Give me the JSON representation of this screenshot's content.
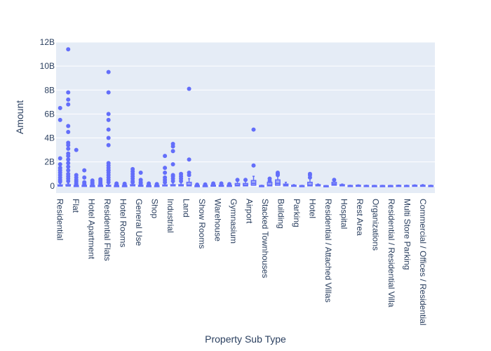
{
  "chart_data": {
    "type": "box",
    "xlabel": "Property Sub Type",
    "ylabel": "Amount",
    "ylim": [
      -600000000,
      12000000000
    ],
    "yticks": [
      0,
      2000000000,
      4000000000,
      6000000000,
      8000000000,
      10000000000,
      12000000000
    ],
    "ytick_labels": [
      "0",
      "2B",
      "4B",
      "6B",
      "8B",
      "10B",
      "12B"
    ],
    "grid": true,
    "legend": "none",
    "colors": {
      "marker": "#636efa",
      "plot_bg": "#e5ecf6",
      "grid": "#ffffff",
      "text": "#2a3f5f"
    },
    "categories": [
      "Residential",
      "Flat",
      "Hotel Apartment",
      "Residential Flats",
      "Hotel Rooms",
      "General Use",
      "Shop",
      "Industrial",
      "Land",
      "Show Rooms",
      "Warehouse",
      "Gymnasium",
      "Airport",
      "Stacked Townhouses",
      "Building",
      "Parking",
      "Hotel",
      "Residential / Attached Villas",
      "Hospital",
      "Rest Area",
      "Organizations",
      "Residential / Residential Villa",
      "Multi Store Parking",
      "Commercial / Offices / Residential"
    ],
    "series": [
      {
        "q1": 0,
        "median": 0,
        "q3": 80000000.0,
        "upper": 200000000.0,
        "outliers": [
          6500000000.0,
          5500000000.0,
          2300000000.0,
          1800000000.0,
          1500000000.0,
          1300000000.0,
          1100000000.0,
          900000000.0,
          700000000.0,
          500000000.0,
          350000000.0
        ]
      },
      {
        "q1": 0,
        "median": 0,
        "q3": 100000000.0,
        "upper": 200000000.0,
        "outliers": [
          11400000000.0,
          7800000000.0,
          7200000000.0,
          6800000000.0,
          5000000000.0,
          4500000000.0,
          3600000000.0,
          3400000000.0,
          3100000000.0,
          2700000000.0,
          2500000000.0,
          2200000000.0,
          1900000000.0,
          1600000000.0,
          1300000000.0,
          1000000000.0,
          800000000.0,
          600000000.0,
          400000000.0
        ]
      },
      {
        "q1": 0,
        "median": 0,
        "q3": 30000000.0,
        "upper": 60000000.0,
        "outliers": [
          3000000000.0,
          900000000.0,
          700000000.0,
          500000000.0,
          350000000.0,
          200000000.0,
          100000000.0
        ]
      },
      {
        "q1": 0,
        "median": 0,
        "q3": 40000000.0,
        "upper": 80000000.0,
        "outliers": [
          1300000000.0,
          700000000.0,
          300000000.0,
          200000000.0,
          100000000.0
        ]
      },
      {
        "q1": 0,
        "median": 0,
        "q3": 20000000.0,
        "upper": 40000000.0,
        "outliers": [
          450000000.0,
          300000000.0,
          200000000.0,
          100000000.0
        ]
      },
      {
        "q1": 0,
        "median": 10000000.0,
        "q3": 40000000.0,
        "upper": 80000000.0,
        "outliers": [
          550000000.0,
          400000000.0,
          250000000.0,
          150000000.0
        ]
      },
      {
        "q1": 0,
        "median": 10000000.0,
        "q3": 50000000.0,
        "upper": 100000000.0,
        "outliers": [
          9500000000.0,
          7800000000.0,
          6000000000.0,
          5500000000.0,
          4700000000.0,
          4000000000.0,
          3400000000.0,
          1900000000.0,
          1700000000.0,
          1500000000.0,
          1300000000.0,
          1100000000.0,
          900000000.0,
          700000000.0,
          500000000.0,
          300000000.0,
          1300000000.0
        ]
      },
      {
        "q1": 0,
        "median": 0,
        "q3": 20000000.0,
        "upper": 50000000.0,
        "outliers": [
          200000000.0,
          120000000.0,
          80000000.0
        ]
      },
      {
        "q1": 0,
        "median": 0,
        "q3": 20000000.0,
        "upper": 50000000.0,
        "outliers": [
          180000000.0,
          120000000.0,
          80000000.0
        ]
      },
      {
        "q1": 0,
        "median": 20000000.0,
        "q3": 100000000.0,
        "upper": 200000000.0,
        "outliers": [
          1400000000.0,
          1200000000.0,
          1000000000.0,
          800000000.0,
          600000000.0,
          400000000.0,
          300000000.0
        ]
      },
      {
        "q1": 0,
        "median": 10000000.0,
        "q3": 50000000.0,
        "upper": 100000000.0,
        "outliers": [
          1100000000.0,
          500000000.0,
          300000000.0,
          200000000.0
        ]
      },
      {
        "q1": 0,
        "median": 0,
        "q3": 20000000.0,
        "upper": 50000000.0,
        "outliers": [
          200000000.0,
          100000000.0
        ]
      },
      {
        "q1": 0,
        "median": 0,
        "q3": 20000000.0,
        "upper": 50000000.0,
        "outliers": [
          150000000.0,
          100000000.0
        ]
      },
      {
        "q1": 0,
        "median": 20000000.0,
        "q3": 80000000.0,
        "upper": 200000000.0,
        "outliers": [
          2500000000.0,
          1500000000.0,
          1100000000.0,
          700000000.0,
          500000000.0,
          300000000.0
        ]
      },
      {
        "q1": 0,
        "median": 20000000.0,
        "q3": 100000000.0,
        "upper": 250000000.0,
        "outliers": [
          3500000000.0,
          3300000000.0,
          2900000000.0,
          1800000000.0,
          900000000.0,
          800000000.0,
          600000000.0,
          400000000.0
        ]
      },
      {
        "q1": 0,
        "median": 20000000.0,
        "q3": 100000000.0,
        "upper": 250000000.0,
        "outliers": [
          1000000000.0,
          800000000.0,
          600000000.0,
          400000000.0
        ]
      },
      {
        "q1": 0,
        "median": 50000000.0,
        "q3": 300000000.0,
        "upper": 600000000.0,
        "outliers": [
          8100000000.0,
          2200000000.0,
          1100000000.0,
          900000000.0
        ]
      },
      {
        "q1": 0,
        "median": 0,
        "q3": 20000000.0,
        "upper": 50000000.0,
        "outliers": [
          100000000.0
        ]
      },
      {
        "q1": 0,
        "median": 0,
        "q3": 20000000.0,
        "upper": 50000000.0,
        "outliers": [
          120000000.0
        ]
      },
      {
        "q1": 0,
        "median": 20000000.0,
        "q3": 60000000.0,
        "upper": 100000000.0,
        "outliers": [
          200000000.0,
          150000000.0
        ]
      },
      {
        "q1": 0,
        "median": 20000000.0,
        "q3": 50000000.0,
        "upper": 100000000.0,
        "outliers": [
          200000000.0
        ]
      },
      {
        "q1": 0,
        "median": 10000000.0,
        "q3": 40000000.0,
        "upper": 80000000.0,
        "outliers": [
          150000000.0
        ]
      },
      {
        "q1": 0,
        "median": 50000000.0,
        "q3": 200000000.0,
        "upper": 400000000.0,
        "outliers": [
          500000000.0
        ]
      },
      {
        "q1": 0,
        "median": 50000000.0,
        "q3": 200000000.0,
        "upper": 400000000.0,
        "outliers": [
          500000000.0
        ]
      },
      {
        "q1": 50000000.0,
        "median": 200000000.0,
        "q3": 450000000.0,
        "upper": 800000000.0,
        "outliers": [
          4700000000.0,
          1700000000.0
        ]
      },
      {
        "q1": 0,
        "median": 0,
        "q3": 20000000.0,
        "upper": 50000000.0,
        "outliers": []
      },
      {
        "q1": 0,
        "median": 50000000.0,
        "q3": 300000000.0,
        "upper": 600000000.0,
        "outliers": [
          600000000.0,
          400000000.0
        ]
      },
      {
        "q1": 50000000.0,
        "median": 200000000.0,
        "q3": 500000000.0,
        "upper": 800000000.0,
        "outliers": [
          1100000000.0,
          1000000000.0,
          900000000.0
        ]
      },
      {
        "q1": 0,
        "median": 50000000.0,
        "q3": 150000000.0,
        "upper": 300000000.0,
        "outliers": []
      },
      {
        "q1": 0,
        "median": 10000000.0,
        "q3": 50000000.0,
        "upper": 100000000.0,
        "outliers": []
      },
      {
        "q1": 0,
        "median": 0,
        "q3": 20000000.0,
        "upper": 40000000.0,
        "outliers": []
      },
      {
        "q1": 0,
        "median": 50000000.0,
        "q3": 300000000.0,
        "upper": 600000000.0,
        "outliers": [
          1000000000.0,
          900000000.0,
          700000000.0
        ]
      },
      {
        "q1": 0,
        "median": 50000000.0,
        "q3": 100000000.0,
        "upper": 150000000.0,
        "outliers": []
      },
      {
        "q1": 0,
        "median": 0,
        "q3": 10000000.0,
        "upper": 20000000.0,
        "outliers": []
      },
      {
        "q1": 50000000.0,
        "median": 150000000.0,
        "q3": 300000000.0,
        "upper": 600000000.0,
        "outliers": [
          500000000.0
        ]
      },
      {
        "q1": 0,
        "median": 50000000.0,
        "q3": 100000000.0,
        "upper": 150000000.0,
        "outliers": []
      },
      {
        "q1": 0,
        "median": 10000000.0,
        "q3": 30000000.0,
        "upper": 50000000.0,
        "outliers": []
      },
      {
        "q1": 0,
        "median": 20000000.0,
        "q3": 50000000.0,
        "upper": 80000000.0,
        "outliers": []
      },
      {
        "q1": 0,
        "median": 10000000.0,
        "q3": 30000000.0,
        "upper": 50000000.0,
        "outliers": []
      },
      {
        "q1": 0,
        "median": 10000000.0,
        "q3": 20000000.0,
        "upper": 40000000.0,
        "outliers": []
      },
      {
        "q1": 0,
        "median": 10000000.0,
        "q3": 20000000.0,
        "upper": 40000000.0,
        "outliers": []
      },
      {
        "q1": 0,
        "median": 10000000.0,
        "q3": 20000000.0,
        "upper": 40000000.0,
        "outliers": []
      },
      {
        "q1": 0,
        "median": 20000000.0,
        "q3": 40000000.0,
        "upper": 60000000.0,
        "outliers": []
      },
      {
        "q1": 0,
        "median": 10000000.0,
        "q3": 30000000.0,
        "upper": 50000000.0,
        "outliers": []
      },
      {
        "q1": 0,
        "median": 20000000.0,
        "q3": 50000000.0,
        "upper": 80000000.0,
        "outliers": []
      },
      {
        "q1": 0,
        "median": 20000000.0,
        "q3": 50000000.0,
        "upper": 100000000.0,
        "outliers": []
      },
      {
        "q1": 0,
        "median": 10000000.0,
        "q3": 30000000.0,
        "upper": 50000000.0,
        "outliers": []
      }
    ]
  }
}
